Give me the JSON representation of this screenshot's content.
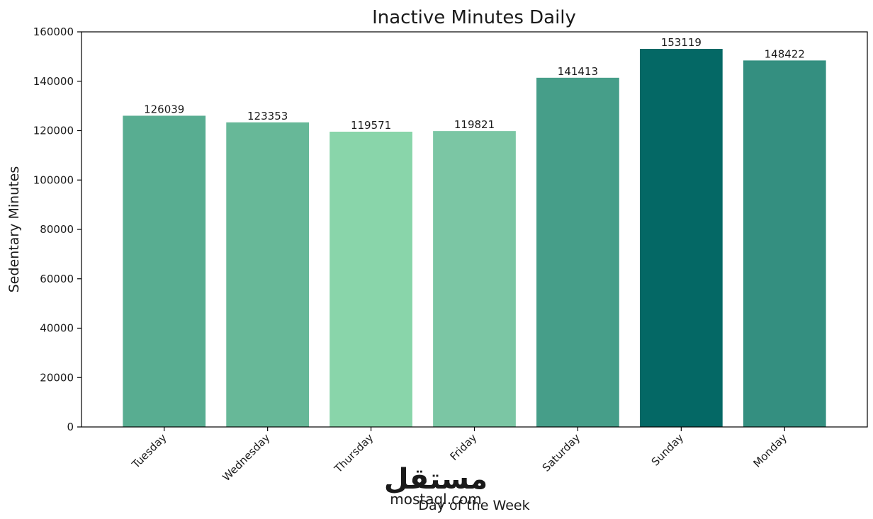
{
  "watermark": {
    "logo": "مستقل",
    "text": "mostaql.com"
  },
  "chart_data": {
    "type": "bar",
    "title": "Inactive Minutes Daily",
    "xlabel": "Day of the Week",
    "ylabel": "Sedentary Minutes",
    "categories": [
      "Tuesday",
      "Wednesday",
      "Thursday",
      "Friday",
      "Saturday",
      "Sunday",
      "Monday"
    ],
    "values": [
      126039,
      123353,
      119571,
      119821,
      141413,
      153119,
      148422
    ],
    "data_labels": [
      "126039",
      "123353",
      "119571",
      "119821",
      "141413",
      "153119",
      "148422"
    ],
    "colors": [
      "#58ad91",
      "#67b898",
      "#89d5aa",
      "#7bc6a4",
      "#469e89",
      "#046865",
      "#348f80"
    ],
    "ylim": [
      0,
      160000
    ],
    "yticks": [
      0,
      20000,
      40000,
      60000,
      80000,
      100000,
      120000,
      140000,
      160000
    ],
    "ytick_labels": [
      "0",
      "20000",
      "40000",
      "60000",
      "80000",
      "100000",
      "120000",
      "140000",
      "160000"
    ],
    "grid": false,
    "legend": "none"
  }
}
